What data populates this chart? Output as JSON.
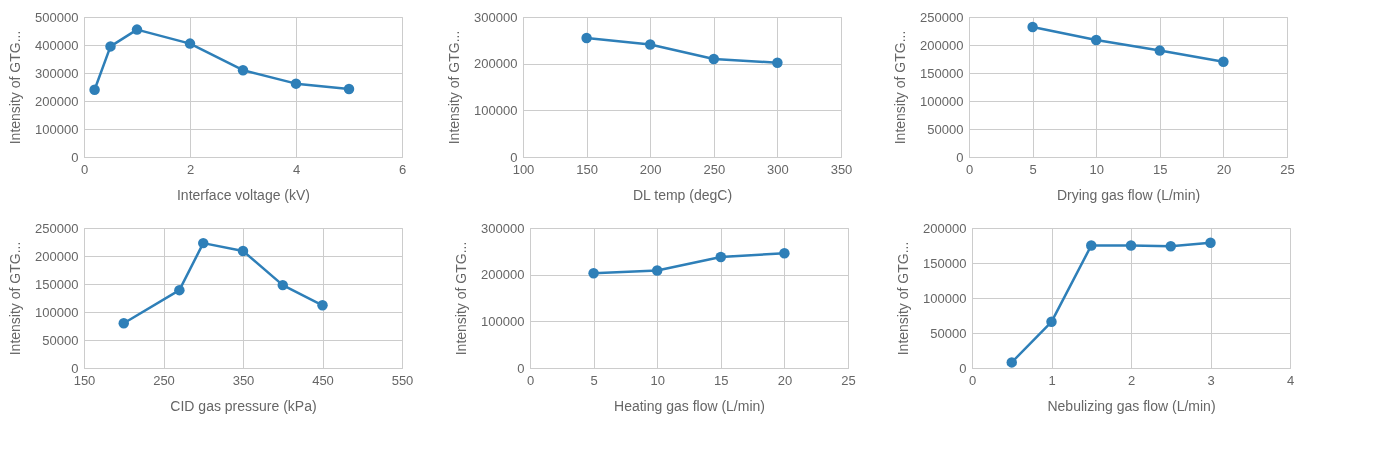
{
  "chart_data": [
    {
      "type": "line",
      "xlabel": "Interface voltage (kV)",
      "ylabel": "Intensity of GTG...",
      "x": [
        0.2,
        0.5,
        1,
        2,
        3,
        4,
        5
      ],
      "series": [
        {
          "color": "#2e7fb8",
          "values": [
            240000,
            395000,
            455000,
            405000,
            310000,
            262000,
            243000
          ]
        }
      ],
      "xlim": [
        0,
        6
      ],
      "xticks": [
        0,
        2,
        4,
        6
      ],
      "ylim": [
        0,
        500000
      ],
      "yticks": [
        0,
        100000,
        200000,
        300000,
        400000,
        500000
      ],
      "grid": true,
      "marker": "circle",
      "line_style": "solid"
    },
    {
      "type": "line",
      "xlabel": "DL temp (degC)",
      "ylabel": "Intensity of GTG...",
      "x": [
        150,
        200,
        250,
        300
      ],
      "series": [
        {
          "color": "#2e7fb8",
          "values": [
            255000,
            241000,
            210000,
            202000
          ]
        }
      ],
      "xlim": [
        100,
        350
      ],
      "xticks": [
        100,
        150,
        200,
        250,
        300,
        350
      ],
      "ylim": [
        0,
        300000
      ],
      "yticks": [
        0,
        100000,
        200000,
        300000
      ],
      "grid": true,
      "marker": "circle",
      "line_style": "solid"
    },
    {
      "type": "line",
      "xlabel": "Drying gas flow (L/min)",
      "ylabel": "Intensity of GTG...",
      "x": [
        5,
        10,
        15,
        20
      ],
      "series": [
        {
          "color": "#2e7fb8",
          "values": [
            232000,
            209000,
            190000,
            170000
          ]
        }
      ],
      "xlim": [
        0,
        25
      ],
      "xticks": [
        0,
        5,
        10,
        15,
        20,
        25
      ],
      "ylim": [
        0,
        250000
      ],
      "yticks": [
        0,
        50000,
        100000,
        150000,
        200000,
        250000
      ],
      "grid": true,
      "marker": "circle",
      "line_style": "solid"
    },
    {
      "type": "line",
      "xlabel": "CID gas pressure (kPa)",
      "ylabel": "Intensity of GTG...",
      "x": [
        200,
        270,
        300,
        350,
        400,
        450
      ],
      "series": [
        {
          "color": "#2e7fb8",
          "values": [
            80000,
            139000,
            223000,
            209000,
            148000,
            112000
          ]
        }
      ],
      "xlim": [
        150,
        550
      ],
      "xticks": [
        150,
        250,
        350,
        450,
        550
      ],
      "ylim": [
        0,
        250000
      ],
      "yticks": [
        0,
        50000,
        100000,
        150000,
        200000,
        250000
      ],
      "grid": true,
      "marker": "circle",
      "line_style": "solid"
    },
    {
      "type": "line",
      "xlabel": "Heating gas flow (L/min)",
      "ylabel": "Intensity of GTG...",
      "x": [
        5,
        10,
        15,
        20
      ],
      "series": [
        {
          "color": "#2e7fb8",
          "values": [
            203000,
            209000,
            238000,
            246000
          ]
        }
      ],
      "xlim": [
        0,
        25
      ],
      "xticks": [
        0,
        5,
        10,
        15,
        20,
        25
      ],
      "ylim": [
        0,
        300000
      ],
      "yticks": [
        0,
        100000,
        200000,
        300000
      ],
      "grid": true,
      "marker": "circle",
      "line_style": "solid"
    },
    {
      "type": "line",
      "xlabel": "Nebulizing gas flow (L/min)",
      "ylabel": "Intensity of GTG...",
      "x": [
        0.5,
        1,
        1.5,
        2,
        2.5,
        3
      ],
      "series": [
        {
          "color": "#2e7fb8",
          "values": [
            8000,
            66000,
            175000,
            175000,
            174000,
            179000
          ]
        }
      ],
      "xlim": [
        0,
        4
      ],
      "xticks": [
        0,
        1,
        2,
        3,
        4
      ],
      "ylim": [
        0,
        200000
      ],
      "yticks": [
        0,
        50000,
        100000,
        150000,
        200000
      ],
      "grid": true,
      "marker": "circle",
      "line_style": "solid"
    }
  ]
}
